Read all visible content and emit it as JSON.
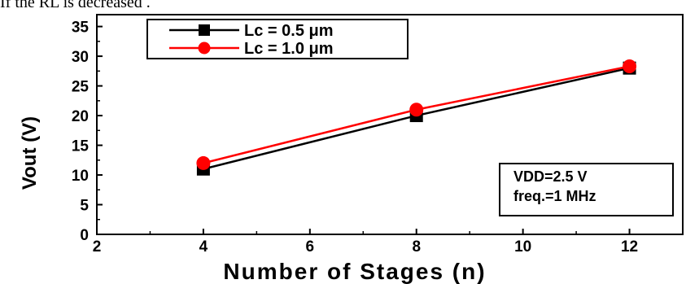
{
  "page_header": {
    "cut_text": "If the RL is decreased ."
  },
  "chart_data": {
    "type": "line",
    "xlabel": "Number of Stages (n)",
    "ylabel": "Vout (V)",
    "xlim": [
      2,
      13
    ],
    "ylim": [
      0,
      37
    ],
    "xticks": [
      2,
      4,
      6,
      8,
      10,
      12
    ],
    "yticks": [
      0,
      5,
      10,
      15,
      20,
      25,
      30,
      35
    ],
    "x": [
      4,
      8,
      12
    ],
    "series": [
      {
        "name": "Lc = 0.5 μm",
        "values": [
          11,
          20,
          28
        ],
        "color": "#000000",
        "marker": "square"
      },
      {
        "name": "Lc = 1.0 μm",
        "values": [
          12,
          21,
          28.3
        ],
        "color": "#ff0000",
        "marker": "circle"
      }
    ],
    "legend_position": "top-left",
    "annotation": [
      "VDD=2.5 V",
      "freq.=1 MHz"
    ],
    "grid": false
  }
}
